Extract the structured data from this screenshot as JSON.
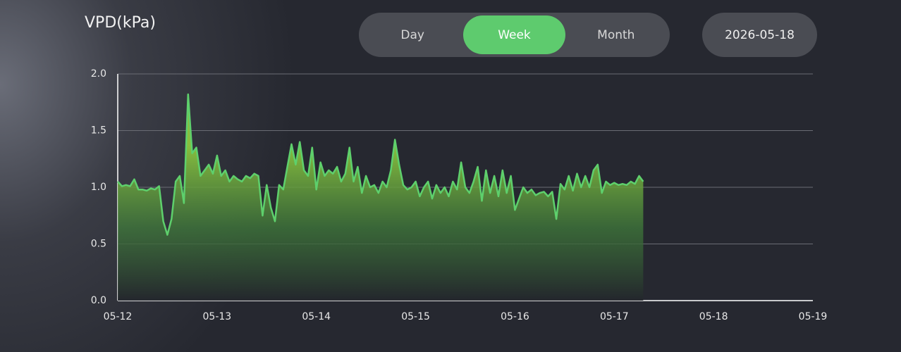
{
  "tabs": [
    "Day",
    "Week",
    "Month"
  ],
  "active_tab": "Week",
  "date": "2026-05-18",
  "chart_data": {
    "type": "area",
    "title": "VPD(kPa)",
    "color": "#5ed06c",
    "xlim": [
      0,
      168
    ],
    "xticks": [
      {
        "value": 0,
        "label": "05-12"
      },
      {
        "value": 24,
        "label": "05-13"
      },
      {
        "value": 48,
        "label": "05-14"
      },
      {
        "value": 72,
        "label": "05-15"
      },
      {
        "value": 96,
        "label": "05-16"
      },
      {
        "value": 120,
        "label": "05-17"
      },
      {
        "value": 144,
        "label": "05-18"
      },
      {
        "value": 168,
        "label": "05-19"
      }
    ],
    "ylim": [
      0,
      2
    ],
    "yticks": [
      {
        "value": 0,
        "label": "0.0"
      },
      0.5,
      {
        "value": 1,
        "label": "1.0"
      },
      1.5,
      {
        "value": 2,
        "label": "2.0"
      }
    ],
    "grid": true,
    "x": [
      0,
      1,
      2,
      3,
      4,
      5,
      6,
      7,
      8,
      9,
      10,
      11,
      12,
      13,
      14,
      15,
      16,
      17,
      18,
      19,
      20,
      21,
      22,
      23,
      24,
      25,
      26,
      27,
      28,
      29,
      30,
      31,
      32,
      33,
      34,
      35,
      36,
      37,
      38,
      39,
      40,
      41,
      42,
      43,
      44,
      45,
      46,
      47,
      48,
      49,
      50,
      51,
      52,
      53,
      54,
      55,
      56,
      57,
      58,
      59,
      60,
      61,
      62,
      63,
      64,
      65,
      66,
      67,
      68,
      69,
      70,
      71,
      72,
      73,
      74,
      75,
      76,
      77,
      78,
      79,
      80,
      81,
      82,
      83,
      84,
      85,
      86,
      87,
      88,
      89,
      90,
      91,
      92,
      93,
      94,
      95,
      96,
      97,
      98,
      99,
      100,
      101,
      102,
      103,
      104,
      105,
      106,
      107,
      108,
      109,
      110,
      111,
      112,
      113,
      114,
      115,
      116,
      117,
      118,
      119,
      120,
      121,
      122,
      123,
      124,
      125,
      126,
      127
    ],
    "values": [
      1.05,
      1.01,
      1.02,
      1.01,
      1.07,
      0.98,
      0.98,
      0.97,
      0.99,
      0.98,
      1.01,
      0.7,
      0.58,
      0.72,
      1.05,
      1.1,
      0.86,
      1.82,
      1.3,
      1.35,
      1.1,
      1.15,
      1.2,
      1.12,
      1.28,
      1.1,
      1.15,
      1.05,
      1.1,
      1.07,
      1.05,
      1.1,
      1.08,
      1.12,
      1.1,
      0.75,
      1.02,
      0.82,
      0.7,
      1.02,
      0.98,
      1.18,
      1.38,
      1.2,
      1.4,
      1.15,
      1.1,
      1.35,
      0.98,
      1.22,
      1.1,
      1.15,
      1.12,
      1.18,
      1.05,
      1.12,
      1.35,
      1.05,
      1.18,
      0.95,
      1.1,
      1.0,
      1.02,
      0.95,
      1.05,
      1.0,
      1.15,
      1.42,
      1.2,
      1.02,
      0.98,
      1.0,
      1.05,
      0.92,
      1.0,
      1.05,
      0.9,
      1.02,
      0.95,
      1.0,
      0.92,
      1.05,
      0.98,
      1.22,
      1.0,
      0.95,
      1.05,
      1.18,
      0.88,
      1.15,
      0.95,
      1.1,
      0.92,
      1.15,
      0.95,
      1.1,
      0.8,
      0.9,
      1.0,
      0.95,
      0.98,
      0.93,
      0.95,
      0.96,
      0.92,
      0.96,
      0.72,
      1.03,
      0.98,
      1.1,
      0.97,
      1.12,
      1.0,
      1.1,
      1.0,
      1.15,
      1.2,
      0.95,
      1.05,
      1.02,
      1.04,
      1.02,
      1.03,
      1.02,
      1.05,
      1.03,
      1.1,
      1.05
    ]
  }
}
